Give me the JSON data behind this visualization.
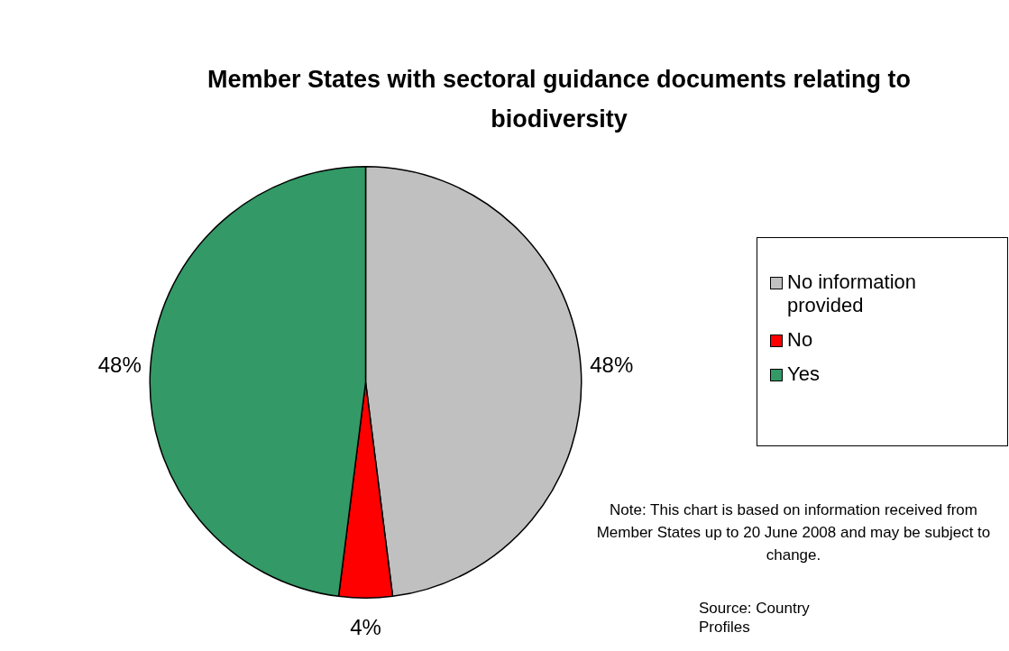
{
  "chart_data": {
    "type": "pie",
    "title": "Member States with sectoral guidance documents relating to biodiversity",
    "categories": [
      "No information provided",
      "No",
      "Yes"
    ],
    "values": [
      48,
      4,
      48
    ],
    "value_labels": [
      "48%",
      "4%",
      "48%"
    ],
    "colors": [
      "#c0c0c0",
      "#ff0000",
      "#339966"
    ],
    "legend": "right",
    "annotations": [
      "Note: This chart is based on information received from Member States up to 20 June 2008 and may be subject to change.",
      "Source: Country Profiles"
    ]
  }
}
